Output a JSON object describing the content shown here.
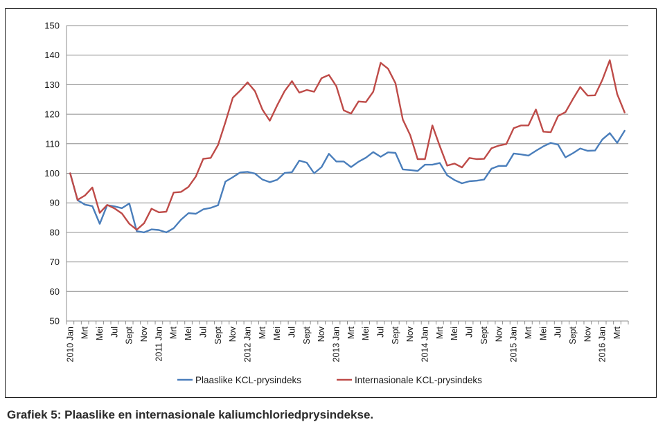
{
  "caption": "Grafiek 5: Plaaslike en internasionale kaliumchloriedprysindekse.",
  "chart_data": {
    "type": "line",
    "title": "",
    "xlabel": "",
    "ylabel": "",
    "ylim": [
      50,
      150
    ],
    "yticks": [
      50,
      60,
      70,
      80,
      90,
      100,
      110,
      120,
      130,
      140,
      150
    ],
    "grid": "horizontal",
    "legend_position": "bottom",
    "x": [
      "2010 Jan",
      "Feb",
      "Mrt",
      "Apr",
      "Mei",
      "Jun",
      "Jul",
      "Aug",
      "Sept",
      "Okt",
      "Nov",
      "Des",
      "2011 Jan",
      "Feb",
      "Mrt",
      "Apr",
      "Mei",
      "Jun",
      "Jul",
      "Aug",
      "Sept",
      "Okt",
      "Nov",
      "Des",
      "2012 Jan",
      "Feb",
      "Mrt",
      "Apr",
      "Mei",
      "Jun",
      "Jul",
      "Aug",
      "Sept",
      "Okt",
      "Nov",
      "Des",
      "2013 Jan",
      "Feb",
      "Mrt",
      "Apr",
      "Mei",
      "Jun",
      "Jul",
      "Aug",
      "Sept",
      "Okt",
      "Nov",
      "Des",
      "2014 Jan",
      "Feb",
      "Mrt",
      "Apr",
      "Mei",
      "Jun",
      "Jul",
      "Aug",
      "Sept",
      "Okt",
      "Nov",
      "Des",
      "2015 Jan",
      "Feb",
      "Mrt",
      "Apr",
      "Mei",
      "Jun",
      "Jul",
      "Aug",
      "Sept",
      "Okt",
      "Nov",
      "Des",
      "2016 Jan",
      "Feb",
      "Mrt",
      "Apr"
    ],
    "x_tick_labels": [
      "2010 Jan",
      "Mrt",
      "Mei",
      "Jul",
      "Sept",
      "Nov",
      "2011 Jan",
      "Mrt",
      "Mei",
      "Jul",
      "Sept",
      "Nov",
      "2012 Jan",
      "Mrt",
      "Mei",
      "Jul",
      "Sept",
      "Nov",
      "2013 Jan",
      "Mrt",
      "Mei",
      "Jul",
      "Sept",
      "Nov",
      "2014 Jan",
      "Mrt",
      "Mei",
      "Jul",
      "Sept",
      "Nov",
      "2015 Jan",
      "Mrt",
      "Mei",
      "Jul",
      "Sept",
      "Nov",
      "2016 Jan",
      "Mrt"
    ],
    "series": [
      {
        "name": "Plaaslike KCL-prysindeks",
        "color": "#4a7ebb",
        "values": [
          100,
          90.9,
          89.4,
          88.9,
          82.9,
          89.2,
          88.8,
          88.2,
          89.8,
          80.4,
          80.0,
          81.0,
          80.8,
          80.0,
          81.4,
          84.3,
          86.5,
          86.3,
          87.8,
          88.3,
          89.2,
          97.2,
          98.7,
          100.3,
          100.5,
          99.9,
          97.9,
          97.0,
          97.8,
          100.1,
          100.4,
          104.3,
          103.6,
          100.0,
          102.1,
          106.6,
          104.0,
          104.0,
          102.1,
          103.9,
          105.3,
          107.2,
          105.6,
          107.1,
          106.9,
          101.3,
          101.1,
          100.8,
          102.9,
          102.9,
          103.5,
          99.3,
          97.7,
          96.6,
          97.3,
          97.5,
          97.9,
          101.6,
          102.5,
          102.5,
          106.7,
          106.4,
          106.0,
          107.6,
          109.1,
          110.3,
          109.7,
          105.4,
          106.8,
          108.4,
          107.6,
          107.7,
          111.5,
          113.6,
          110.3,
          114.4
        ]
      },
      {
        "name": "Internasionale KCL-prysindeks",
        "color": "#be4b48",
        "values": [
          100,
          91.0,
          92.5,
          95.2,
          86.6,
          89.3,
          88.1,
          86.4,
          82.9,
          80.9,
          83.1,
          88.0,
          86.8,
          87.0,
          93.5,
          93.7,
          95.4,
          98.9,
          104.9,
          105.2,
          109.6,
          117.3,
          125.6,
          128.0,
          130.8,
          127.8,
          121.6,
          117.8,
          123.0,
          127.8,
          131.2,
          127.3,
          128.2,
          127.6,
          132.2,
          133.3,
          129.5,
          121.3,
          120.2,
          124.3,
          124.1,
          127.6,
          137.4,
          135.4,
          130.5,
          118.2,
          112.9,
          104.8,
          104.8,
          116.2,
          109.2,
          102.6,
          103.3,
          102.0,
          105.2,
          104.8,
          104.9,
          108.5,
          109.4,
          109.9,
          115.3,
          116.2,
          116.2,
          121.6,
          114.1,
          113.9,
          119.4,
          120.7,
          125.1,
          129.2,
          126.3,
          126.4,
          131.7,
          138.3,
          126.8,
          120.6
        ]
      }
    ]
  }
}
